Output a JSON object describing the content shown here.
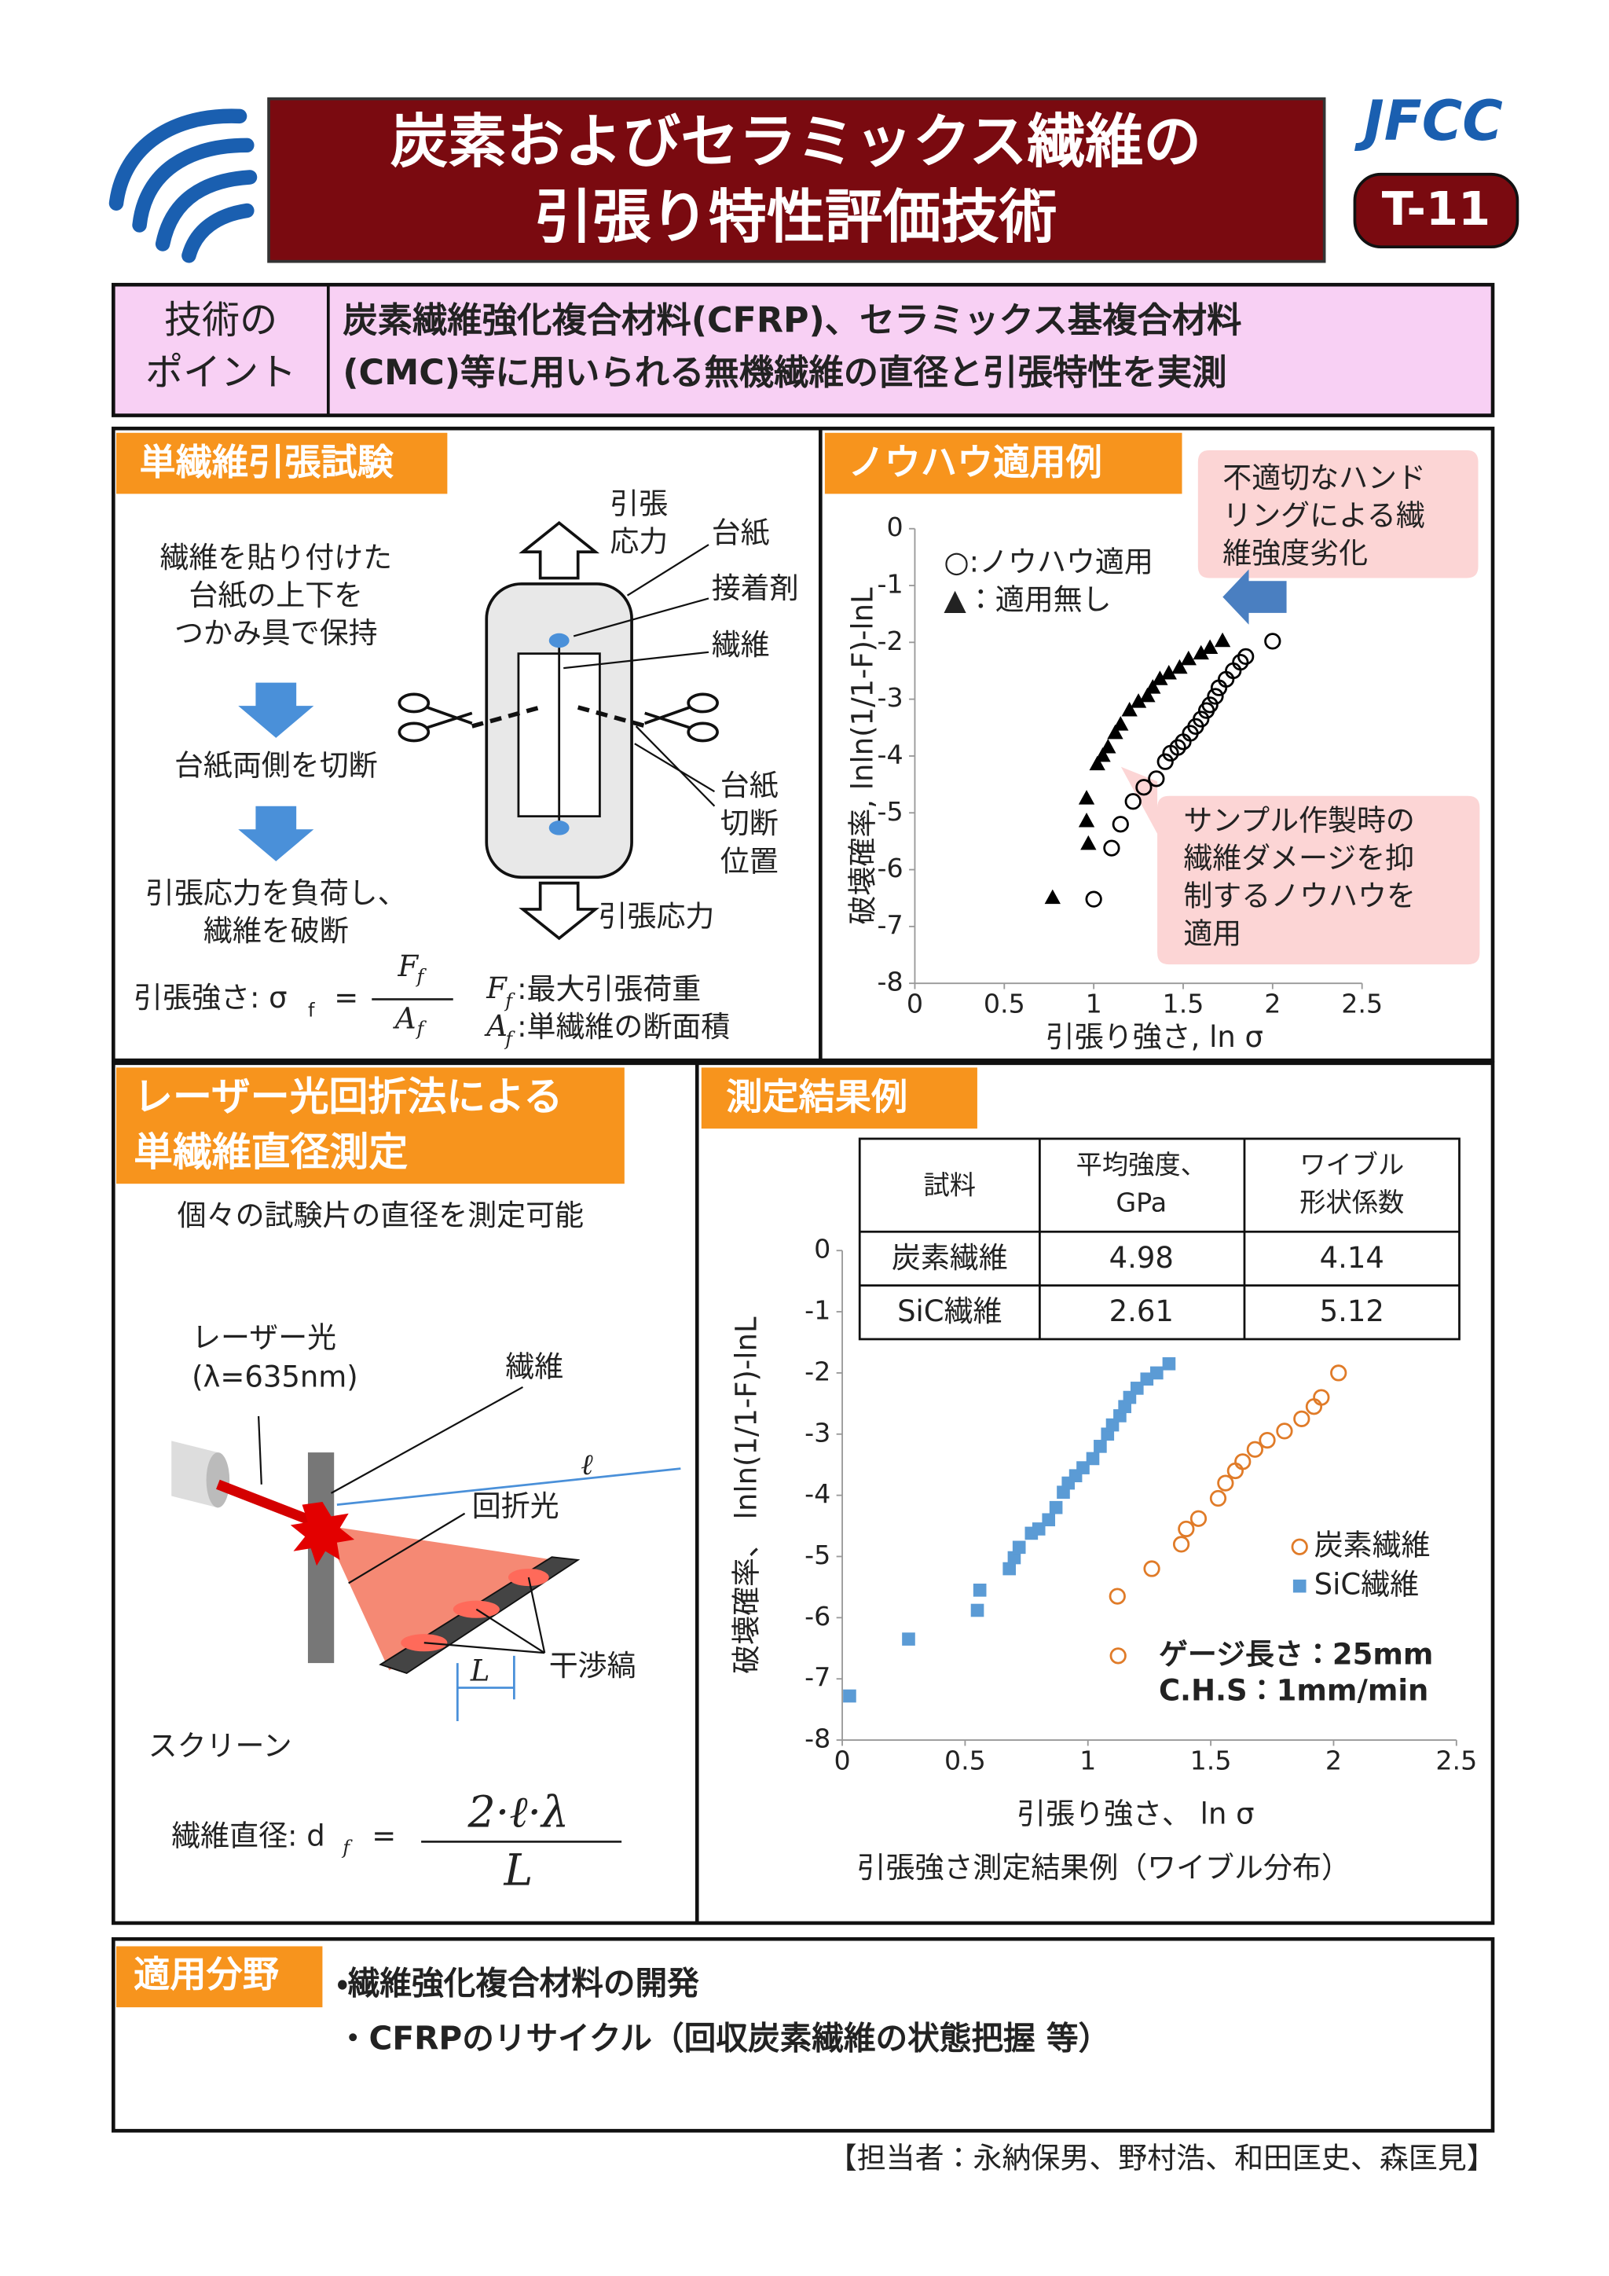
{
  "header": {
    "title": [
      "炭素およびセラミックス繊維の",
      "引張り特性評価技術"
    ],
    "org": "JFCC",
    "code": "T-11"
  },
  "point": {
    "label": [
      "技術の",
      "ポイント"
    ],
    "text": [
      "炭素繊維強化複合材料(CFRP)、セラミックス基複合材料",
      "(CMC)等に用いられる無機繊維の直径と引張特性を実測"
    ]
  },
  "tensile": {
    "heading": "単繊維引張試験",
    "steps": [
      [
        "繊維を貼り付けた",
        "台紙の上下を",
        "つかみ具で保持"
      ],
      [
        "台紙両側を切断"
      ],
      [
        "引張応力を負荷し、",
        "繊維を破断"
      ]
    ],
    "labels": {
      "stress_top": [
        "引張",
        "応力"
      ],
      "mount": "台紙",
      "adhesive": "接着剤",
      "fiber": "繊維",
      "cut": [
        "台紙",
        "切断",
        "位置"
      ],
      "stress_bottom": "引張応力"
    },
    "formula": {
      "lhs": "引張強さ: σ",
      "lhs_sub": "f",
      "eq": "=",
      "num": "F",
      "num_sub": "f",
      "den": "A",
      "den_sub": "f",
      "notes": [
        {
          "sym": "F",
          "sub": "f",
          "text": ":最大引張荷重"
        },
        {
          "sym": "A",
          "sub": "f",
          "text": ":単繊維の断面積"
        }
      ]
    }
  },
  "knowhow": {
    "heading": "ノウハウ適用例",
    "callouts": [
      [
        "不適切なハンド",
        "リングによる繊",
        "維強度劣化"
      ],
      [
        "サンプル作製時の",
        "繊維ダメージを抑",
        "制するノウハウを",
        "適用"
      ]
    ]
  },
  "laser": {
    "heading": [
      "レーザー光回折法による",
      "単繊維直径測定"
    ],
    "subtitle": "個々の試験片の直径を測定可能",
    "labels": {
      "laser": [
        "レーザー光",
        "(λ=635nm)"
      ],
      "fiber": "繊維",
      "ell": "ℓ",
      "diffracted": "回折光",
      "L": "L",
      "fringes": "干渉縞",
      "screen": "スクリーン"
    },
    "formula": {
      "lhs": "繊維直径: d",
      "lhs_sub": "f",
      "eq": "=",
      "num": "2·ℓ·λ",
      "den": "L"
    }
  },
  "results": {
    "heading": "測定結果例",
    "table": {
      "header": [
        [
          "試料"
        ],
        [
          "平均強度、",
          "GPa"
        ],
        [
          "ワイブル",
          "形状係数"
        ]
      ],
      "rows": [
        [
          "炭素繊維",
          4.98,
          4.14
        ],
        [
          "SiC繊維",
          2.61,
          5.12
        ]
      ]
    },
    "caption": "引張強さ測定結果例（ワイブル分布）",
    "conditions": [
      "ゲージ長さ：25mm",
      "C.H.S：1mm/min"
    ]
  },
  "applications": {
    "heading": "適用分野",
    "items": [
      "・繊維強化複合材料の開発",
      "・CFRPのリサイクル（回収炭素繊維の状態把握 等）"
    ]
  },
  "footer": "【担当者：永納保男、野村浩、和田匡史、森匡見】",
  "chart_data": [
    {
      "type": "scatter",
      "x_label": "引張り強さ, ln σ",
      "y_label": "破壊確率, lnln(1/1-F)-lnL",
      "xlim": [
        0,
        2.5
      ],
      "ylim": [
        -8,
        0
      ],
      "xticks": [
        0,
        0.5,
        1,
        1.5,
        2,
        2.5
      ],
      "yticks": [
        0,
        -1,
        -2,
        -3,
        -4,
        -5,
        -6,
        -7,
        -8
      ],
      "grid": false,
      "series": [
        {
          "name": "○:ノウハウ適用",
          "color": "#000000",
          "marker": "open-circle",
          "x": [
            1.0,
            1.1,
            1.15,
            1.22,
            1.28,
            1.35,
            1.4,
            1.43,
            1.47,
            1.5,
            1.54,
            1.57,
            1.6,
            1.63,
            1.65,
            1.68,
            1.7,
            1.74,
            1.78,
            1.82,
            1.85,
            2.0
          ],
          "values": [
            -6.52,
            -5.62,
            -5.2,
            -4.8,
            -4.55,
            -4.4,
            -4.1,
            -3.95,
            -3.85,
            -3.75,
            -3.6,
            -3.48,
            -3.35,
            -3.2,
            -3.1,
            -2.95,
            -2.8,
            -2.65,
            -2.5,
            -2.35,
            -2.25,
            -1.98
          ]
        },
        {
          "name": "▲：適用無し",
          "color": "#000000",
          "marker": "triangle",
          "x": [
            0.77,
            0.97,
            0.96,
            0.96,
            1.02,
            1.05,
            1.08,
            1.12,
            1.15,
            1.2,
            1.25,
            1.3,
            1.33,
            1.37,
            1.42,
            1.48,
            1.53,
            1.6,
            1.65,
            1.72
          ],
          "values": [
            -6.5,
            -5.55,
            -5.15,
            -4.75,
            -4.15,
            -4.0,
            -3.85,
            -3.6,
            -3.45,
            -3.2,
            -3.05,
            -2.95,
            -2.8,
            -2.65,
            -2.55,
            -2.45,
            -2.3,
            -2.2,
            -2.1,
            -1.98
          ]
        }
      ]
    },
    {
      "type": "scatter",
      "x_label": "引張り強さ、 ln σ",
      "y_label": "破壊確率、 lnln(1/1-F)-lnL",
      "xlim": [
        0,
        2.5
      ],
      "ylim": [
        -8,
        0
      ],
      "xticks": [
        0,
        0.5,
        1,
        1.5,
        2,
        2.5
      ],
      "yticks": [
        0,
        -1,
        -2,
        -3,
        -4,
        -5,
        -6,
        -7,
        -8
      ],
      "grid": false,
      "series": [
        {
          "name": "炭素繊維",
          "color": "#e07b28",
          "marker": "open-circle",
          "x": [
            1.12,
            1.26,
            1.38,
            1.4,
            1.45,
            1.53,
            1.56,
            1.6,
            1.63,
            1.68,
            1.73,
            1.8,
            1.87,
            1.92,
            1.95,
            2.02
          ],
          "values": [
            -5.65,
            -5.2,
            -4.8,
            -4.55,
            -4.38,
            -4.05,
            -3.8,
            -3.6,
            -3.45,
            -3.25,
            -3.1,
            -2.95,
            -2.75,
            -2.55,
            -2.4,
            -2.0
          ]
        },
        {
          "name": "SiC繊維",
          "color": "#5b9bd5",
          "marker": "square",
          "x": [
            0.03,
            0.27,
            0.55,
            0.56,
            0.68,
            0.7,
            0.72,
            0.77,
            0.8,
            0.84,
            0.87,
            0.9,
            0.92,
            0.95,
            0.98,
            1.02,
            1.05,
            1.08,
            1.1,
            1.13,
            1.15,
            1.17,
            1.2,
            1.24,
            1.28,
            1.33
          ],
          "values": [
            -7.28,
            -6.35,
            -5.88,
            -5.55,
            -5.2,
            -5.02,
            -4.85,
            -4.62,
            -4.55,
            -4.4,
            -4.2,
            -3.95,
            -3.8,
            -3.68,
            -3.55,
            -3.4,
            -3.2,
            -3.0,
            -2.85,
            -2.7,
            -2.55,
            -2.4,
            -2.25,
            -2.1,
            -2.0,
            -1.85
          ]
        }
      ]
    }
  ]
}
